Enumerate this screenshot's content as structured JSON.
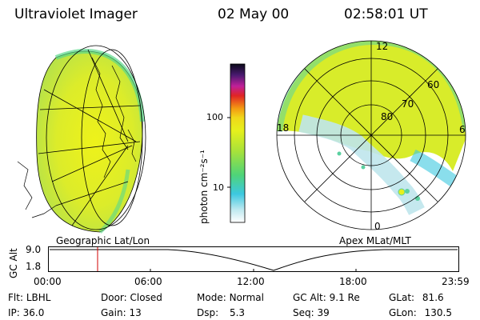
{
  "header": {
    "instrument": "Ultraviolet Imager",
    "date": "02 May 00",
    "time": "02:58:01 UT"
  },
  "colorbar": {
    "unit_label": "photon cm⁻²s⁻¹",
    "ticks": [
      "100",
      "10"
    ]
  },
  "left_panel": {
    "label": "Geographic Lat/Lon"
  },
  "right_panel": {
    "label": "Apex MLat/MLT",
    "hour_labels": [
      "12",
      "18",
      "6",
      "0"
    ],
    "lat_labels": [
      "60",
      "70",
      "80"
    ]
  },
  "timeline": {
    "ylabel": "GC Alt",
    "yticks": [
      "9.0",
      "1.8"
    ],
    "xticks": [
      "00:00",
      "06:00",
      "12:00",
      "18:00",
      "23:59"
    ]
  },
  "footer": {
    "row1": [
      {
        "label": "Flt:",
        "value": "LBHL"
      },
      {
        "label": "Door:",
        "value": "Closed"
      },
      {
        "label": "Mode:",
        "value": "Normal"
      },
      {
        "label": "GC Alt:",
        "value": "9.1 Re"
      },
      {
        "label": "GLat:",
        "value": "81.6"
      }
    ],
    "row2": [
      {
        "label": "IP:",
        "value": "36.0"
      },
      {
        "label": "Gain:",
        "value": "13"
      },
      {
        "label": "Dsp:",
        "value": "5.3"
      },
      {
        "label": "Seq:",
        "value": "39"
      },
      {
        "label": "GLon:",
        "value": "130.5"
      }
    ]
  }
}
